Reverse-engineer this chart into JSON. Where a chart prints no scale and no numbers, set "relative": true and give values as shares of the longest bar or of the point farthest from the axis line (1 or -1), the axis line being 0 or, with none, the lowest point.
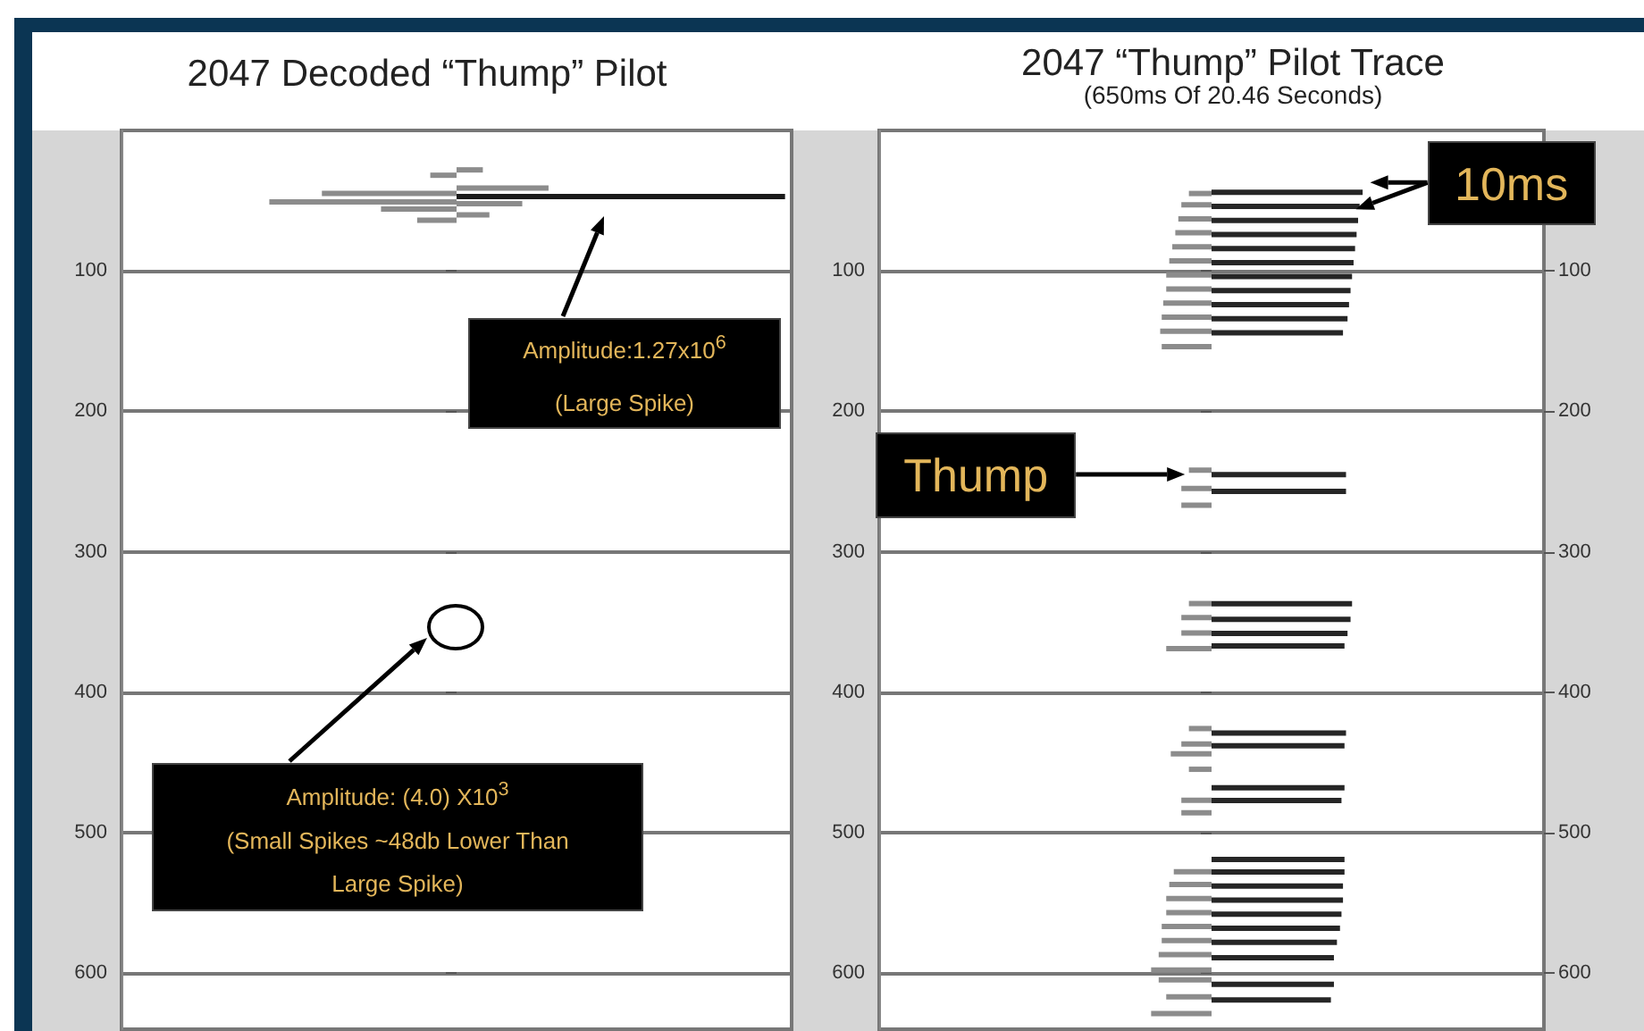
{
  "chart_data": [
    {
      "type": "bar",
      "orientation": "horizontal",
      "relative": true,
      "title": "2047 Decoded “Thump” Pilot",
      "ylim": [
        640,
        0
      ],
      "yticks": [
        100,
        200,
        300,
        400,
        500,
        600
      ],
      "grid": "y",
      "tick_labels": "y",
      "series": [
        {
          "colors": [
            "#8c8c8c",
            "#8c8c8c",
            "#1a1a1a",
            "#8c8c8c",
            "#8c8c8c"
          ],
          "x": [
            30,
            43,
            49,
            54,
            62
          ],
          "values": [
            0.08,
            0.28,
            1,
            0.2,
            0.1
          ]
        },
        {
          "color": "#8c8c8c",
          "x": [
            30,
            43,
            49,
            54,
            62
          ],
          "values": [
            -0.08,
            -0.41,
            -0.57,
            -0.23,
            -0.12
          ]
        }
      ],
      "annotations": [
        "Amplitude:1.27x10$^{6}$",
        "(Large Spike)",
        "Amplitude: (4.0) X10$^{3}$",
        "(Small Spikes ~48db Lower Than Large Spike)"
      ]
    },
    {
      "type": "bar",
      "orientation": "horizontal",
      "relative": true,
      "title": "2047 “Thump” Pilot Trace",
      "subtitle": "(650ms Of 20.46 Seconds)",
      "ylim": [
        640,
        0
      ],
      "yticks": [
        100,
        200,
        300,
        400,
        500,
        600
      ],
      "y2lim": [
        640,
        0
      ],
      "y2ticks": [
        100,
        200,
        300,
        400,
        500,
        600
      ],
      "grid": "y",
      "tick_labels": "y",
      "series": [
        {
          "color": "#262626",
          "x": [
            46,
            56,
            66,
            76,
            86,
            96,
            106,
            116,
            126,
            136,
            146,
            247,
            259,
            339,
            350,
            360,
            369,
            431,
            440,
            470,
            479,
            521,
            530,
            540,
            550,
            560,
            570,
            580,
            591,
            610,
            621
          ],
          "values": [
            1,
            0.98,
            0.97,
            0.96,
            0.95,
            0.94,
            0.93,
            0.92,
            0.91,
            0.9,
            0.87,
            0.89,
            0.89,
            0.93,
            0.92,
            0.9,
            0.88,
            0.89,
            0.88,
            0.88,
            0.86,
            0.88,
            0.88,
            0.87,
            0.87,
            0.86,
            0.85,
            0.83,
            0.81,
            0.81,
            0.79
          ]
        },
        {
          "color": "#8c8c8c",
          "x": [
            43,
            51,
            61,
            71,
            81,
            91,
            101,
            111,
            121,
            131,
            141,
            152,
            240,
            253,
            265,
            335,
            345,
            356,
            367,
            424,
            435,
            442,
            453,
            475,
            484,
            526,
            535,
            545,
            555,
            565,
            575,
            585,
            596,
            603,
            615,
            627
          ],
          "values": [
            -0.15,
            -0.2,
            -0.22,
            -0.24,
            -0.26,
            -0.28,
            -0.3,
            -0.3,
            -0.32,
            -0.33,
            -0.34,
            -0.33,
            -0.15,
            -0.2,
            -0.2,
            -0.15,
            -0.2,
            -0.2,
            -0.3,
            -0.15,
            -0.2,
            -0.27,
            -0.15,
            -0.2,
            -0.2,
            -0.25,
            -0.28,
            -0.3,
            -0.3,
            -0.33,
            -0.33,
            -0.35,
            -0.4,
            -0.35,
            -0.3,
            -0.4
          ]
        }
      ],
      "annotations": [
        {
          "text": "10ms",
          "x": 1.05,
          "y": 46
        },
        {
          "text": "Thump",
          "x": -0.2,
          "y": 245
        }
      ]
    }
  ]
}
